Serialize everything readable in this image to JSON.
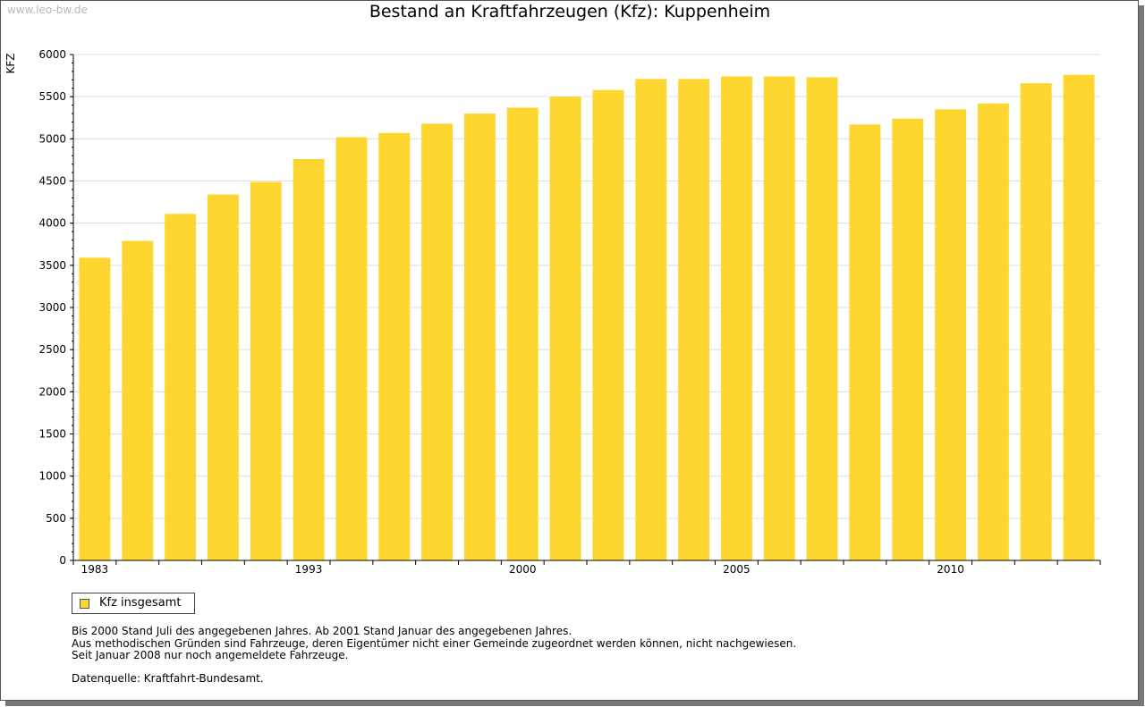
{
  "watermark": "www.leo-bw.de",
  "colors": {
    "bar": "#fdd72f",
    "grid": "#dddddd",
    "axis": "#000000"
  },
  "chart_data": {
    "type": "bar",
    "title": "Bestand an Kraftfahrzeugen (Kfz): Kuppenheim",
    "ylabel": "KFZ",
    "xlabel": "",
    "ylim": [
      0,
      6000
    ],
    "yticks": [
      0,
      500,
      1000,
      1500,
      2000,
      2500,
      3000,
      3500,
      4000,
      4500,
      5000,
      5500,
      6000
    ],
    "xtick_labels": [
      {
        "category_index": 0,
        "label": "1983"
      },
      {
        "category_index": 5,
        "label": "1993"
      },
      {
        "category_index": 10,
        "label": "2000"
      },
      {
        "category_index": 15,
        "label": "2005"
      },
      {
        "category_index": 20,
        "label": "2010"
      }
    ],
    "grid": true,
    "legend_position": "bottom-left",
    "series": [
      {
        "name": "Kfz insgesamt",
        "values": [
          3590,
          3790,
          4110,
          4340,
          4490,
          4760,
          5020,
          5070,
          5180,
          5300,
          5370,
          5500,
          5580,
          5710,
          5710,
          5740,
          5740,
          5730,
          5170,
          5240,
          5350,
          5420,
          5660,
          5760
        ]
      }
    ]
  },
  "notes": [
    "Bis 2000 Stand Juli des angegebenen Jahres. Ab 2001 Stand Januar des angegebenen Jahres.",
    "Aus methodischen Gründen sind Fahrzeuge, deren Eigentümer nicht einer Gemeinde zugeordnet werden können, nicht nachgewiesen.",
    "Seit Januar 2008 nur noch angemeldete Fahrzeuge."
  ],
  "source": "Datenquelle: Kraftfahrt-Bundesamt."
}
